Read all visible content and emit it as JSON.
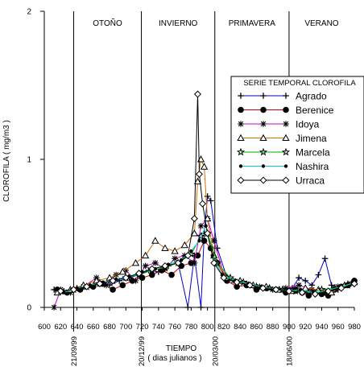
{
  "chart_data": {
    "type": "line",
    "title": "",
    "xlabel": "TIEMPO",
    "xlabel_sub": "( dias julianos )",
    "ylabel": "CLOROFILA ( mg/m3 )",
    "xlim": [
      600,
      980
    ],
    "ylim": [
      0,
      2
    ],
    "x_ticks": [
      600,
      620,
      640,
      660,
      680,
      700,
      720,
      740,
      760,
      780,
      800,
      820,
      840,
      860,
      880,
      900,
      920,
      940,
      960,
      980
    ],
    "y_ticks": [
      0,
      1,
      2
    ],
    "grid": false,
    "seasons": [
      {
        "label": "OTOÑO",
        "from": 636,
        "to": 719
      },
      {
        "label": "INVIERNO",
        "from": 719,
        "to": 809
      },
      {
        "label": "PRIMAVERA",
        "from": 809,
        "to": 900
      },
      {
        "label": "VERANO",
        "from": 900,
        "to": 980
      }
    ],
    "date_markers": [
      {
        "x": 636,
        "label": "21/09/99"
      },
      {
        "x": 719,
        "label": "20/12/99"
      },
      {
        "x": 809,
        "label": "20/03/00"
      },
      {
        "x": 900,
        "label": "18/06/00"
      }
    ],
    "legend": {
      "title": "SERIE TEMPORAL CLOROFILA",
      "placement": "right"
    },
    "series": [
      {
        "name": "Agrado",
        "marker": "plus",
        "color": "#0000cc",
        "x": [
          612,
          624,
          640,
          656,
          668,
          680,
          692,
          704,
          716,
          728,
          740,
          752,
          764,
          776,
          784,
          792,
          796,
          800,
          804,
          812,
          824,
          840,
          856,
          872,
          888,
          904,
          912,
          920,
          928,
          936,
          944,
          952,
          960,
          972,
          980
        ],
        "y": [
          0.12,
          0.11,
          0.13,
          0.15,
          0.17,
          0.15,
          0.18,
          0.2,
          0.22,
          0.25,
          0.24,
          0.28,
          0.3,
          0.0,
          0.35,
          0.0,
          0.5,
          0.75,
          0.72,
          0.4,
          0.2,
          0.18,
          0.15,
          0.14,
          0.12,
          0.13,
          0.2,
          0.18,
          0.15,
          0.22,
          0.33,
          0.15,
          0.12,
          0.16,
          0.18
        ]
      },
      {
        "name": "Berenice",
        "marker": "circle",
        "color": "#cc0000",
        "x": [
          616,
          628,
          644,
          660,
          672,
          684,
          696,
          708,
          720,
          732,
          744,
          756,
          768,
          780,
          788,
          796,
          804,
          812,
          824,
          836,
          848,
          860,
          872,
          884,
          896,
          908,
          916,
          924,
          932,
          940,
          948,
          956,
          964,
          972,
          980
        ],
        "y": [
          0.12,
          0.1,
          0.12,
          0.14,
          0.16,
          0.12,
          0.15,
          0.18,
          0.2,
          0.22,
          0.25,
          0.22,
          0.28,
          0.3,
          0.35,
          0.45,
          0.4,
          0.3,
          0.18,
          0.14,
          0.15,
          0.12,
          0.13,
          0.12,
          0.1,
          0.12,
          0.1,
          0.08,
          0.1,
          0.09,
          0.08,
          0.12,
          0.14,
          0.15,
          0.18
        ]
      },
      {
        "name": "Idoya",
        "marker": "asterisk",
        "color": "#cc00cc",
        "x": [
          612,
          620,
          632,
          648,
          664,
          676,
          688,
          700,
          712,
          724,
          736,
          748,
          760,
          772,
          784,
          792,
          800,
          808,
          820,
          832,
          848,
          864,
          880,
          896,
          912,
          928,
          944,
          960,
          976
        ],
        "y": [
          0.0,
          0.12,
          0.1,
          0.14,
          0.2,
          0.15,
          0.22,
          0.25,
          0.18,
          0.28,
          0.3,
          0.26,
          0.33,
          0.35,
          0.3,
          0.55,
          0.6,
          0.45,
          0.22,
          0.18,
          0.16,
          0.14,
          0.12,
          0.13,
          0.15,
          0.12,
          0.1,
          0.14,
          0.16
        ]
      },
      {
        "name": "Jimena",
        "marker": "triangle",
        "color": "#d07000",
        "x": [
          616,
          632,
          648,
          664,
          680,
          696,
          712,
          724,
          736,
          748,
          760,
          772,
          784,
          788,
          792,
          796,
          800,
          808,
          824,
          840,
          856,
          872,
          888,
          904,
          920,
          936,
          952,
          968,
          980
        ],
        "y": [
          0.1,
          0.12,
          0.15,
          0.18,
          0.2,
          0.24,
          0.3,
          0.35,
          0.45,
          0.4,
          0.38,
          0.42,
          0.5,
          0.85,
          1.0,
          0.95,
          0.6,
          0.35,
          0.2,
          0.18,
          0.15,
          0.14,
          0.12,
          0.11,
          0.13,
          0.12,
          0.1,
          0.15,
          0.17
        ]
      },
      {
        "name": "Marcela",
        "marker": "star",
        "color": "#00aa00",
        "x": [
          620,
          636,
          652,
          668,
          684,
          700,
          716,
          732,
          748,
          764,
          780,
          792,
          800,
          812,
          828,
          844,
          860,
          876,
          892,
          908,
          924,
          940,
          956,
          972
        ],
        "y": [
          0.11,
          0.12,
          0.14,
          0.16,
          0.18,
          0.2,
          0.22,
          0.25,
          0.27,
          0.3,
          0.36,
          0.48,
          0.5,
          0.3,
          0.2,
          0.17,
          0.14,
          0.13,
          0.12,
          0.11,
          0.1,
          0.12,
          0.13,
          0.15
        ]
      },
      {
        "name": "Nashira",
        "marker": "dot",
        "color": "#00cccc",
        "x": [
          624,
          640,
          656,
          672,
          688,
          704,
          720,
          736,
          752,
          768,
          780,
          790,
          798,
          806,
          818,
          834,
          850,
          866,
          882,
          898,
          914,
          930,
          946,
          962,
          978
        ],
        "y": [
          0.1,
          0.13,
          0.15,
          0.17,
          0.19,
          0.21,
          0.24,
          0.26,
          0.29,
          0.32,
          0.38,
          0.45,
          0.55,
          0.35,
          0.22,
          0.18,
          0.16,
          0.14,
          0.12,
          0.11,
          0.12,
          0.1,
          0.11,
          0.14,
          0.16
        ]
      },
      {
        "name": "Urraca",
        "marker": "diamond",
        "color": "#000000",
        "x": [
          620,
          636,
          652,
          668,
          684,
          700,
          716,
          732,
          748,
          764,
          776,
          784,
          788,
          790,
          794,
          800,
          808,
          820,
          836,
          852,
          868,
          884,
          900,
          916,
          932,
          948,
          964,
          980
        ],
        "y": [
          0.11,
          0.12,
          0.14,
          0.16,
          0.18,
          0.2,
          0.23,
          0.26,
          0.28,
          0.3,
          0.35,
          0.6,
          1.44,
          0.9,
          0.7,
          0.5,
          0.3,
          0.2,
          0.17,
          0.15,
          0.13,
          0.12,
          0.11,
          0.1,
          0.09,
          0.11,
          0.13,
          0.16
        ]
      }
    ]
  }
}
